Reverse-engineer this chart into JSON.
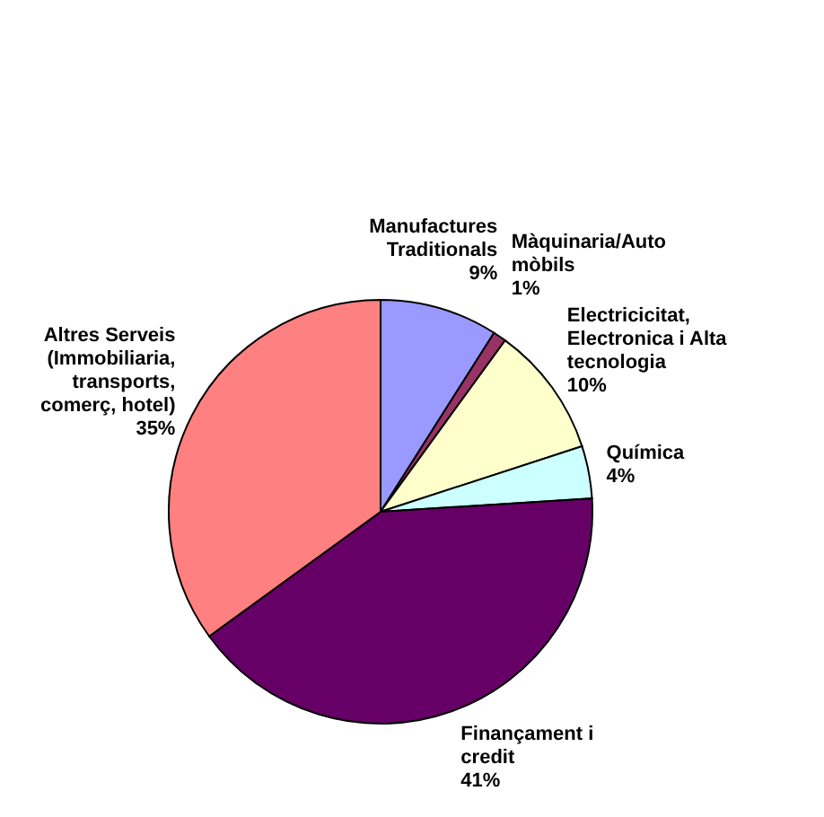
{
  "chart_data": {
    "type": "pie",
    "categories": [
      "Manufactures\nTraditionals",
      "Màquinaria/Auto\nmòbils",
      "Electricicitat,\nElectronica i Alta\ntecnologia",
      "Química",
      "Finançament i\ncredit",
      "Altres Serveis\n(Immobiliaria,\ntransports,\ncomerç, hotel)"
    ],
    "values": [
      9,
      1,
      10,
      4,
      41,
      35
    ],
    "value_labels": [
      "9%",
      "1%",
      "10%",
      "4%",
      "41%",
      "35%"
    ],
    "colors": [
      "#9999ff",
      "#993366",
      "#ffffcc",
      "#ccffff",
      "#660066",
      "#ff8080"
    ]
  }
}
